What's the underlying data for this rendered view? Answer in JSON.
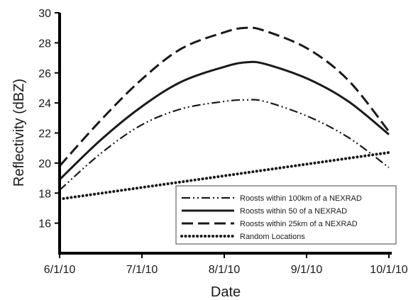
{
  "chart_data": {
    "type": "line",
    "title": "",
    "xlabel": "Date",
    "ylabel": "Reflectivity (dBZ)",
    "x_tick_labels": [
      "6/1/10",
      "7/1/10",
      "8/1/10",
      "9/1/10",
      "10/1/10"
    ],
    "y_ticks": [
      16,
      18,
      20,
      22,
      24,
      26,
      28,
      30
    ],
    "ylim": [
      14,
      30
    ],
    "xlim": [
      "2010-06-01",
      "2010-10-01"
    ],
    "grid": false,
    "legend_position": "bottom-right",
    "series": [
      {
        "name": "Roosts within 100km of a NEXRAD",
        "style": "dash-dot-dot",
        "color": "#1a1a1a",
        "x": [
          "2010-06-01",
          "2010-06-16",
          "2010-07-01",
          "2010-07-16",
          "2010-08-01",
          "2010-08-09",
          "2010-08-16",
          "2010-09-01",
          "2010-09-16",
          "2010-10-01"
        ],
        "y": [
          18.2,
          20.6,
          22.5,
          23.6,
          24.1,
          24.2,
          24.1,
          23.1,
          21.7,
          19.7
        ]
      },
      {
        "name": "Roosts within 50 of a NEXRAD",
        "style": "solid",
        "color": "#1a1a1a",
        "x": [
          "2010-06-01",
          "2010-06-16",
          "2010-07-01",
          "2010-07-16",
          "2010-08-01",
          "2010-08-09",
          "2010-08-16",
          "2010-09-01",
          "2010-09-16",
          "2010-10-01"
        ],
        "y": [
          18.9,
          21.5,
          23.7,
          25.4,
          26.4,
          26.7,
          26.6,
          25.6,
          24.1,
          21.9
        ]
      },
      {
        "name": "Roosts within 25km of a NEXRAD",
        "style": "dashed",
        "color": "#1a1a1a",
        "x": [
          "2010-06-01",
          "2010-06-16",
          "2010-07-01",
          "2010-07-16",
          "2010-08-01",
          "2010-08-09",
          "2010-08-16",
          "2010-09-01",
          "2010-09-16",
          "2010-10-01"
        ],
        "y": [
          19.8,
          22.8,
          25.5,
          27.6,
          28.7,
          29.0,
          28.8,
          27.6,
          25.5,
          22.1
        ]
      },
      {
        "name": "Random Locations",
        "style": "dotted",
        "color": "#1a1a1a",
        "x": [
          "2010-06-01",
          "2010-10-01"
        ],
        "y": [
          17.6,
          20.7
        ]
      }
    ]
  }
}
